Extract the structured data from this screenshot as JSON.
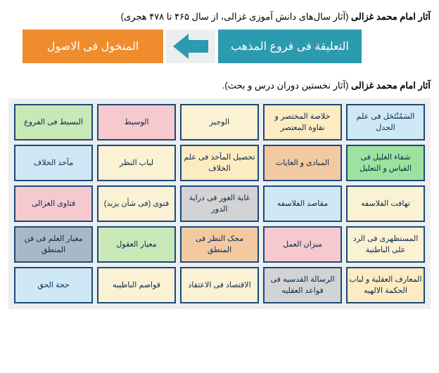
{
  "section1": {
    "title_bold": "آثار امام محمد غزالی",
    "title_sub": " (آثار سال‌های دانش آموزی غزالی، از سال ۴۶۵ تا ۴۷۸ هجری)",
    "box_right": {
      "text": "التعلیقة فی فروع المذهب",
      "bg": "#2c9aaf"
    },
    "box_left": {
      "text": "المنخول فی الاصول",
      "bg": "#ee8c2e"
    },
    "arrow_color": "#2c9aaf",
    "arrow_bg": "#eceeef"
  },
  "section2": {
    "title_bold": "آثار امام محمد غزالی",
    "title_sub": " (آثار نخستین دوران درس و بحث).",
    "grid_bg": "#eceeef",
    "border_color": "#1b4a7a",
    "cells": [
      {
        "text": "السَمُنْتَحَل فی علم الجدل",
        "bg": "#cfe8f5"
      },
      {
        "text": "خلاصة المختصر و نقاوة المعتصر",
        "bg": "#fdebc1"
      },
      {
        "text": "الوجیز",
        "bg": "#fbf1d3"
      },
      {
        "text": "الوسیط",
        "bg": "#f6c9cf"
      },
      {
        "text": "البسیط فی الفروع",
        "bg": "#c9e8b7"
      },
      {
        "text": "شفاء الغلیل فی القیاس و التعلیل",
        "bg": "#9de29e"
      },
      {
        "text": "المبادی و الغایات",
        "bg": "#f3c9a1"
      },
      {
        "text": "تحصیل المآخذ فی علم الخلاف",
        "bg": "#fdebc1"
      },
      {
        "text": "لباب النظر",
        "bg": "#fbf1d3"
      },
      {
        "text": "مآخذ الخلاف",
        "bg": "#cfe8f5"
      },
      {
        "text": "تهافت الفلاسفه",
        "bg": "#fbf1d3"
      },
      {
        "text": "مقاصد الفلاسفه",
        "bg": "#cfe8f5"
      },
      {
        "text": "غایة الغور فی درایة الدور",
        "bg": "#d3d3d3"
      },
      {
        "text": "فتوی (فی شأن یزید)",
        "bg": "#fbf1d3"
      },
      {
        "text": "فتاوی الغزالی",
        "bg": "#f6c9cf"
      },
      {
        "text": "المستظهری فی الرد علی الباطنية",
        "bg": "#fbf1d3"
      },
      {
        "text": "میزان العمل",
        "bg": "#f6c9cf"
      },
      {
        "text": "محک النظر فی المنطق",
        "bg": "#f3c9a1"
      },
      {
        "text": "معیار العقول",
        "bg": "#c9e8b7"
      },
      {
        "text": "معیار العلم فی فن المنطق",
        "bg": "#a8b8c5"
      },
      {
        "text": "المعارف العقلیة و لباب الحکمة الالهیه",
        "bg": "#fdebc1"
      },
      {
        "text": "الرسالة القدسیه فی قواعد العقلیه",
        "bg": "#d3d3d3"
      },
      {
        "text": "الاقتصاد فی الاعتقاد",
        "bg": "#fbf1d3"
      },
      {
        "text": "قواصم الباطیبه",
        "bg": "#fbf1d3"
      },
      {
        "text": "حجة الحق",
        "bg": "#cfe8f5"
      }
    ]
  }
}
